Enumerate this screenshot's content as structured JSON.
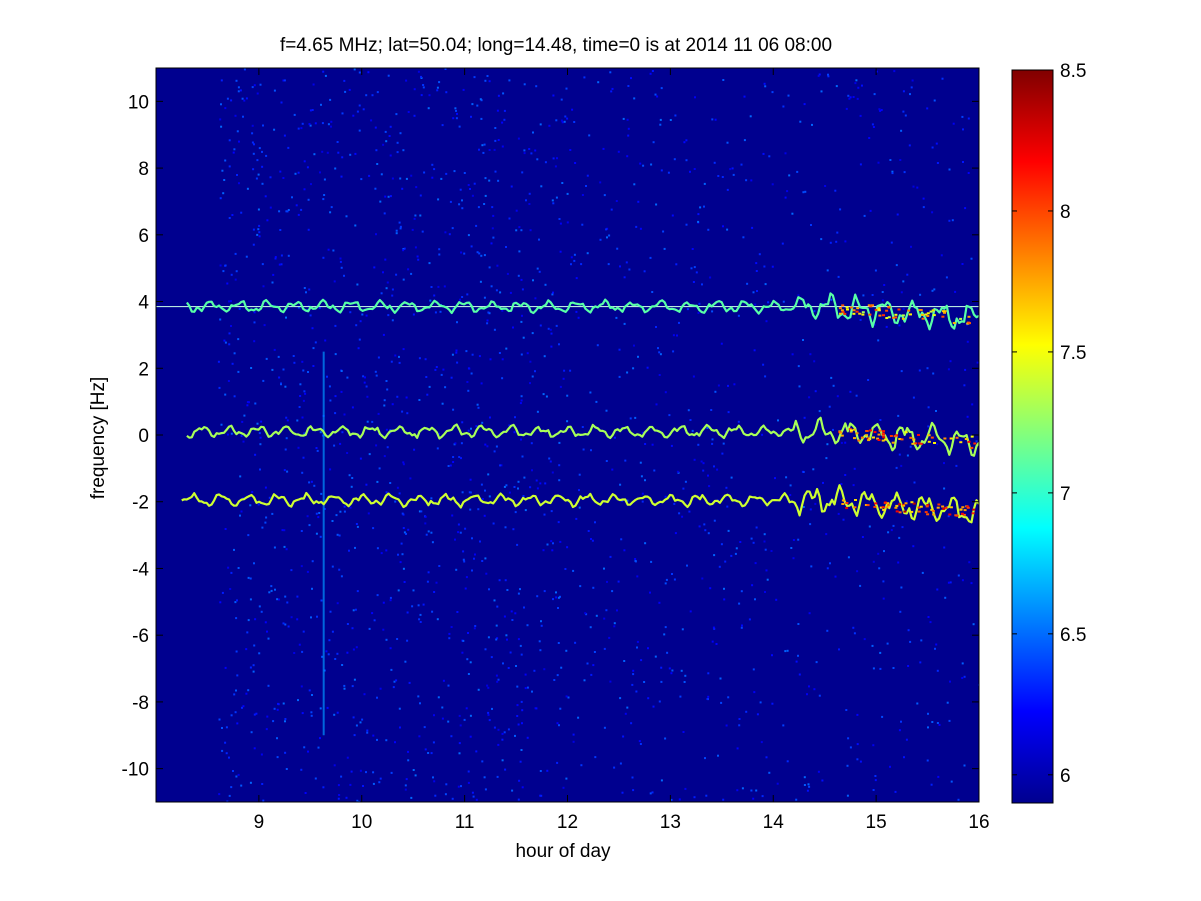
{
  "chart_data": {
    "type": "heatmap",
    "title": "f=4.65 MHz;  lat=50.04; long=14.48, time=0 is at 2014 11 06 08:00",
    "xlabel": "hour of day",
    "ylabel": "frequency [Hz]",
    "xlim": [
      8,
      16
    ],
    "ylim": [
      -11,
      11
    ],
    "x_ticks": [
      9,
      10,
      11,
      12,
      13,
      14,
      15,
      16
    ],
    "x_tick_labels": [
      "9",
      "10",
      "11",
      "12",
      "13",
      "14",
      "15",
      "16"
    ],
    "y_ticks": [
      10,
      8,
      6,
      4,
      2,
      0,
      -2,
      -4,
      -6,
      -8,
      -10
    ],
    "y_tick_labels": [
      "10",
      "8",
      "6",
      "4",
      "2",
      "0",
      "-2",
      "-4",
      "-6",
      "-8",
      "-10"
    ],
    "colorbar": {
      "colormap": "jet",
      "clim": [
        5.9,
        8.5
      ],
      "ticks": [
        6,
        6.5,
        7,
        7.5,
        8,
        8.5
      ],
      "tick_labels": [
        "6",
        "6.5",
        "7",
        "7.5",
        "8",
        "8.5"
      ]
    },
    "background_level": 6.0,
    "features": [
      {
        "name": "reference line",
        "x_range": [
          8,
          16
        ],
        "y": 3.85,
        "level": 7.0
      },
      {
        "name": "upper trace",
        "x_range": [
          8.3,
          16
        ],
        "y_mean": 3.85,
        "y_end": 3.5,
        "level": 7.1
      },
      {
        "name": "middle trace",
        "x_range": [
          8.3,
          16
        ],
        "y_mean": 0.1,
        "y_end": -0.2,
        "level": 7.3
      },
      {
        "name": "lower trace",
        "x_range": [
          8.25,
          16
        ],
        "y_mean": -1.95,
        "y_end": -2.3,
        "level": 7.4
      },
      {
        "name": "vertical streak",
        "x": 9.63,
        "y_range": [
          -9,
          2.5
        ],
        "level": 6.6
      }
    ]
  }
}
